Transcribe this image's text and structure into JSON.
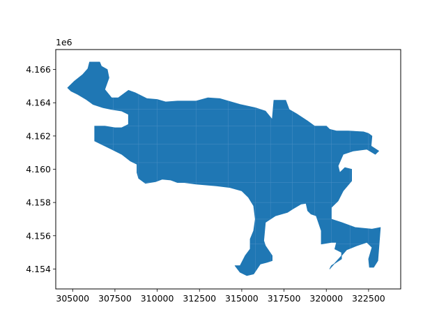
{
  "chart_data": {
    "type": "map",
    "title": "",
    "xlabel": "",
    "ylabel": "",
    "y_offset_label": "1e6",
    "xlim": [
      304000,
      324400
    ],
    "ylim": [
      4152800,
      4167200
    ],
    "x_ticks": [
      305000,
      307500,
      310000,
      312500,
      315000,
      317500,
      320000,
      322500
    ],
    "x_tick_labels": [
      "305000",
      "307500",
      "310000",
      "312500",
      "315000",
      "317500",
      "320000",
      "322500"
    ],
    "y_ticks": [
      4154000,
      4156000,
      4158000,
      4160000,
      4162000,
      4164000,
      4166000
    ],
    "y_tick_labels": [
      "4.154",
      "4.156",
      "4.158",
      "4.160",
      "4.162",
      "4.164",
      "4.166"
    ],
    "grid": false,
    "region_fill_color": "#1f77b4",
    "region_edge_color": "#4a8fc4",
    "region_outline": [
      [
        304700,
        4164900
      ],
      [
        305100,
        4165300
      ],
      [
        305600,
        4165700
      ],
      [
        305900,
        4166050
      ],
      [
        306000,
        4166450
      ],
      [
        306600,
        4166450
      ],
      [
        306700,
        4166200
      ],
      [
        307050,
        4166000
      ],
      [
        307150,
        4165500
      ],
      [
        306900,
        4164800
      ],
      [
        307300,
        4164300
      ],
      [
        307700,
        4164300
      ],
      [
        308100,
        4164600
      ],
      [
        308300,
        4164750
      ],
      [
        308700,
        4164600
      ],
      [
        309400,
        4164250
      ],
      [
        310000,
        4164200
      ],
      [
        310500,
        4164050
      ],
      [
        311200,
        4164100
      ],
      [
        312300,
        4164100
      ],
      [
        313000,
        4164300
      ],
      [
        313700,
        4164250
      ],
      [
        314200,
        4164100
      ],
      [
        314900,
        4163900
      ],
      [
        315800,
        4163700
      ],
      [
        316400,
        4163500
      ],
      [
        316800,
        4163000
      ],
      [
        316900,
        4164150
      ],
      [
        317600,
        4164150
      ],
      [
        317800,
        4163600
      ],
      [
        318300,
        4163300
      ],
      [
        318900,
        4162900
      ],
      [
        319300,
        4162600
      ],
      [
        320000,
        4162600
      ],
      [
        320200,
        4162400
      ],
      [
        320600,
        4162300
      ],
      [
        321300,
        4162300
      ],
      [
        322200,
        4162250
      ],
      [
        322500,
        4162150
      ],
      [
        322700,
        4162000
      ],
      [
        322650,
        4161400
      ],
      [
        323100,
        4161100
      ],
      [
        322900,
        4160900
      ],
      [
        322400,
        4161200
      ],
      [
        321600,
        4161100
      ],
      [
        321000,
        4160900
      ],
      [
        320700,
        4160200
      ],
      [
        320800,
        4159800
      ],
      [
        321100,
        4160100
      ],
      [
        321500,
        4160000
      ],
      [
        321500,
        4159300
      ],
      [
        321000,
        4158700
      ],
      [
        320700,
        4158100
      ],
      [
        320300,
        4157700
      ],
      [
        320300,
        4157000
      ],
      [
        320900,
        4156800
      ],
      [
        321700,
        4156500
      ],
      [
        322700,
        4156400
      ],
      [
        323200,
        4156500
      ],
      [
        323100,
        4155200
      ],
      [
        323050,
        4154500
      ],
      [
        322800,
        4154100
      ],
      [
        322550,
        4154100
      ],
      [
        322500,
        4154600
      ],
      [
        322700,
        4155300
      ],
      [
        322400,
        4155600
      ],
      [
        321800,
        4155400
      ],
      [
        321200,
        4155150
      ],
      [
        320900,
        4154800
      ],
      [
        320500,
        4154350
      ],
      [
        320200,
        4154000
      ],
      [
        320300,
        4154200
      ],
      [
        320900,
        4154600
      ],
      [
        320900,
        4155000
      ],
      [
        320500,
        4155200
      ],
      [
        320600,
        4155600
      ],
      [
        320300,
        4155600
      ],
      [
        319700,
        4155500
      ],
      [
        319700,
        4156300
      ],
      [
        319400,
        4157200
      ],
      [
        319100,
        4157300
      ],
      [
        318900,
        4157500
      ],
      [
        318800,
        4157950
      ],
      [
        318500,
        4157900
      ],
      [
        318000,
        4157600
      ],
      [
        317700,
        4157400
      ],
      [
        317000,
        4157200
      ],
      [
        316400,
        4156800
      ],
      [
        316300,
        4155700
      ],
      [
        316400,
        4155400
      ],
      [
        316800,
        4154800
      ],
      [
        316800,
        4154500
      ],
      [
        316500,
        4154400
      ],
      [
        316100,
        4154300
      ],
      [
        315900,
        4154000
      ],
      [
        315700,
        4153700
      ],
      [
        315300,
        4153600
      ],
      [
        314900,
        4153800
      ],
      [
        314600,
        4154200
      ],
      [
        314900,
        4154200
      ],
      [
        315200,
        4154800
      ],
      [
        315500,
        4155200
      ],
      [
        315500,
        4155800
      ],
      [
        315700,
        4156300
      ],
      [
        315800,
        4157000
      ],
      [
        315700,
        4157800
      ],
      [
        315400,
        4158300
      ],
      [
        315000,
        4158700
      ],
      [
        314300,
        4158900
      ],
      [
        313500,
        4159000
      ],
      [
        312300,
        4159100
      ],
      [
        311600,
        4159200
      ],
      [
        311200,
        4159200
      ],
      [
        310800,
        4159350
      ],
      [
        310300,
        4159400
      ],
      [
        309900,
        4159250
      ],
      [
        309300,
        4159150
      ],
      [
        308900,
        4159450
      ],
      [
        308800,
        4159800
      ],
      [
        308800,
        4160300
      ],
      [
        308400,
        4160500
      ],
      [
        307900,
        4160900
      ],
      [
        307300,
        4161200
      ],
      [
        306700,
        4161500
      ],
      [
        306300,
        4161700
      ],
      [
        306300,
        4162600
      ],
      [
        306900,
        4162600
      ],
      [
        307500,
        4162500
      ],
      [
        307900,
        4162500
      ],
      [
        308300,
        4162700
      ],
      [
        308300,
        4163300
      ],
      [
        307900,
        4163500
      ],
      [
        307300,
        4163600
      ],
      [
        306800,
        4163700
      ],
      [
        306200,
        4163900
      ],
      [
        305800,
        4164200
      ],
      [
        305300,
        4164500
      ],
      [
        304900,
        4164700
      ]
    ]
  }
}
